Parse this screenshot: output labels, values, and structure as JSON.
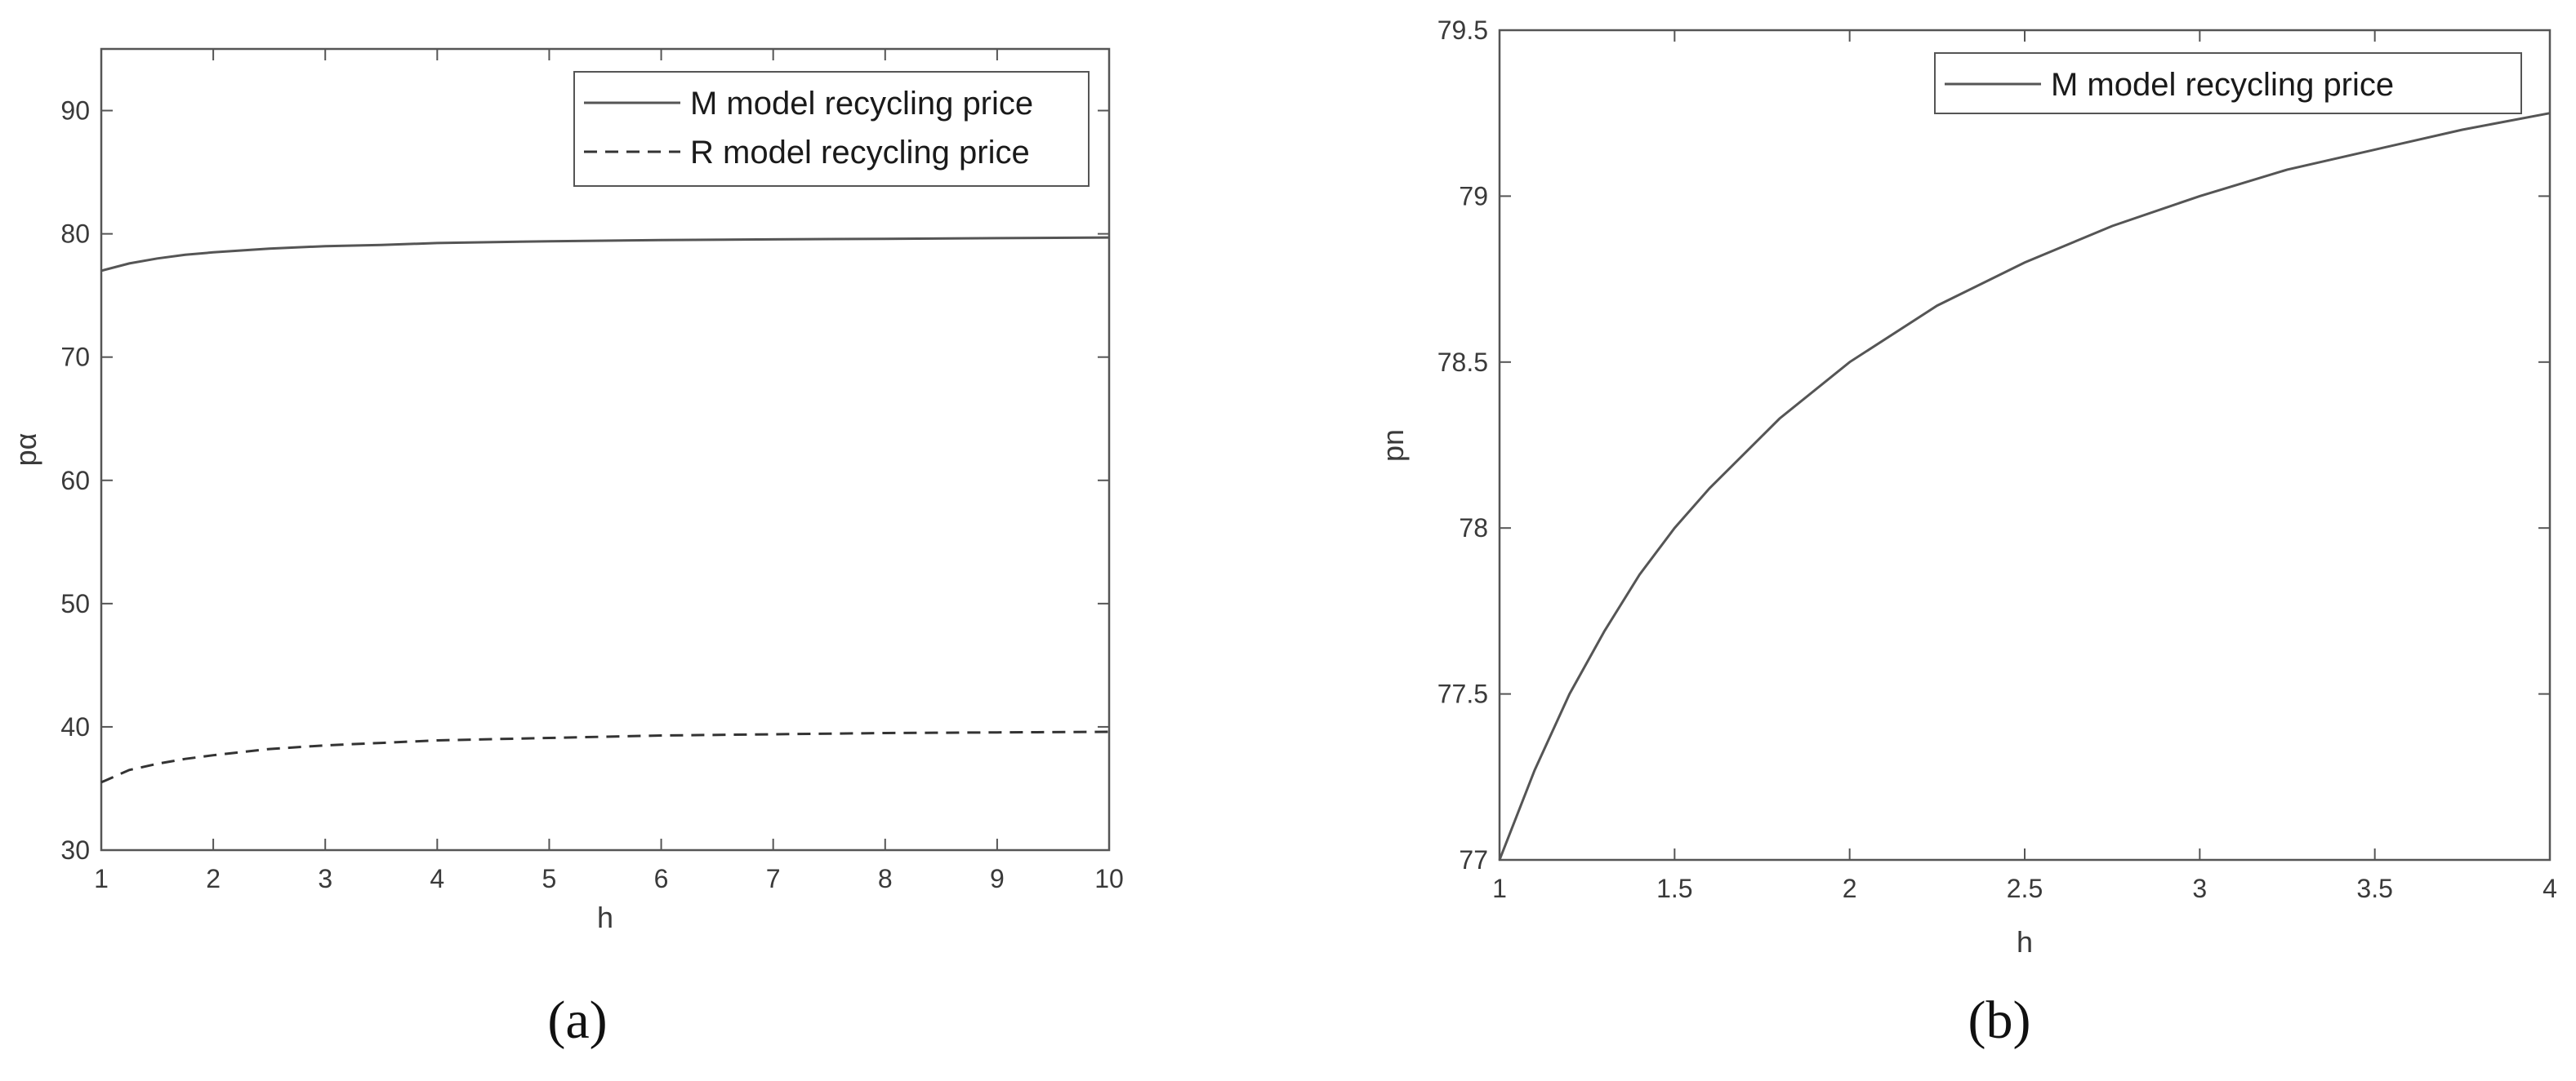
{
  "chart_data": [
    {
      "type": "line",
      "panel_label": "(a)",
      "xlabel": "h",
      "ylabel": "pα",
      "xlim": [
        1,
        10
      ],
      "ylim": [
        30,
        95
      ],
      "xticks": [
        "1",
        "2",
        "3",
        "4",
        "5",
        "6",
        "7",
        "8",
        "9",
        "10"
      ],
      "yticks": [
        "30",
        "40",
        "50",
        "60",
        "70",
        "80",
        "90"
      ],
      "grid": false,
      "legend_position": "top-right",
      "x": [
        1,
        1.25,
        1.5,
        1.75,
        2,
        2.5,
        3,
        3.5,
        4,
        5,
        6,
        7,
        8,
        9,
        10
      ],
      "series": [
        {
          "name": "M model recycling price",
          "style": "solid",
          "color": "#555555",
          "values": [
            77.0,
            77.6,
            78.0,
            78.3,
            78.5,
            78.8,
            79.0,
            79.1,
            79.25,
            79.4,
            79.5,
            79.55,
            79.6,
            79.65,
            79.7
          ]
        },
        {
          "name": "R model recycling price",
          "style": "dashed",
          "color": "#333333",
          "values": [
            35.5,
            36.5,
            37.0,
            37.4,
            37.7,
            38.2,
            38.5,
            38.7,
            38.9,
            39.1,
            39.3,
            39.4,
            39.5,
            39.55,
            39.6
          ]
        }
      ]
    },
    {
      "type": "line",
      "panel_label": "(b)",
      "xlabel": "h",
      "ylabel": "pn",
      "xlim": [
        1,
        4
      ],
      "ylim": [
        77,
        79.5
      ],
      "xticks": [
        "1",
        "1.5",
        "2",
        "2.5",
        "3",
        "3.5",
        "4"
      ],
      "yticks": [
        "77",
        "77.5",
        "78",
        "78.5",
        "79",
        "79.5"
      ],
      "grid": false,
      "legend_position": "top-right",
      "x": [
        1,
        1.1,
        1.2,
        1.3,
        1.4,
        1.5,
        1.6,
        1.8,
        2,
        2.25,
        2.5,
        2.75,
        3,
        3.25,
        3.5,
        3.75,
        4
      ],
      "series": [
        {
          "name": "M model recycling price",
          "style": "solid",
          "color": "#555555",
          "values": [
            77.0,
            77.27,
            77.5,
            77.69,
            77.86,
            78.0,
            78.12,
            78.33,
            78.5,
            78.67,
            78.8,
            78.91,
            79.0,
            79.08,
            79.14,
            79.2,
            79.25
          ]
        }
      ]
    }
  ]
}
